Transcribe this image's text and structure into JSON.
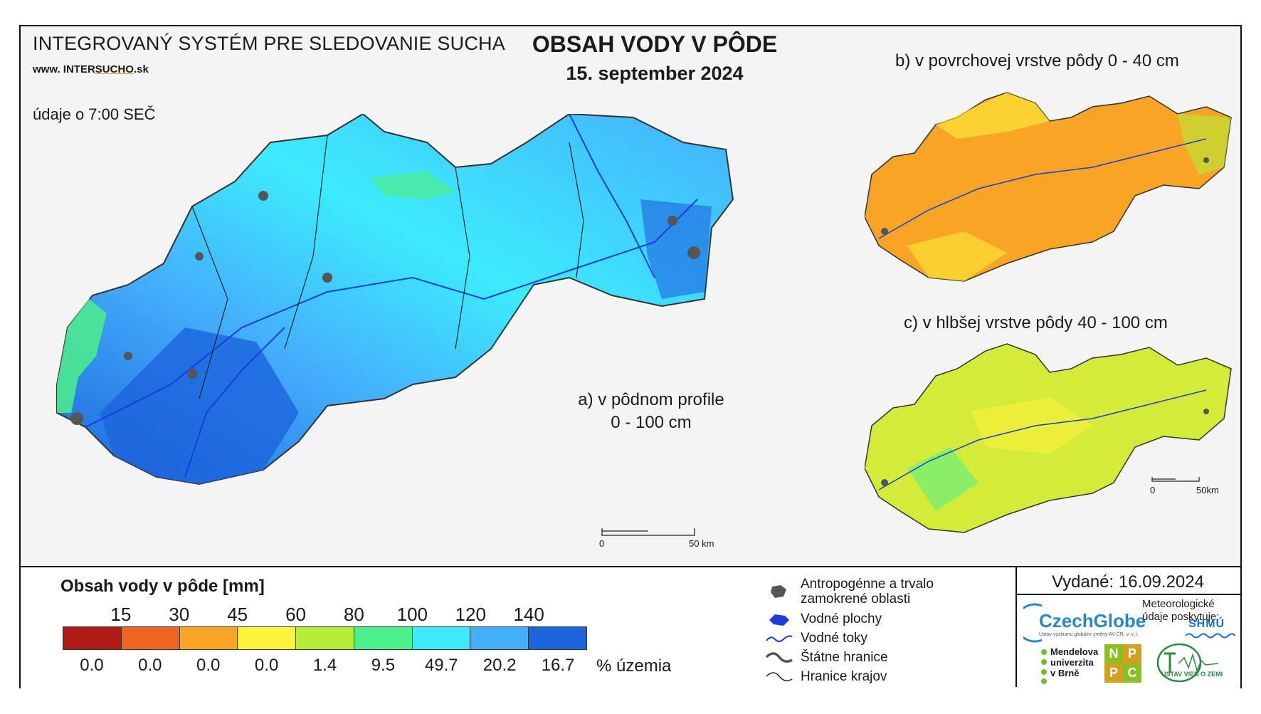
{
  "header": {
    "system_title": "INTEGROVANÝ SYSTÉM PRE SLEDOVANIE SUCHA",
    "url_prefix": "www.",
    "url_brand_a": "INTER",
    "url_brand_b": "SUCHO",
    "url_suffix": ".sk",
    "observation_time": "údaje o 7:00 SEČ",
    "title": "OBSAH VODY V PÔDE",
    "date": "15. september 2024"
  },
  "maps": {
    "a_line1": "a) v pôdnom profile",
    "a_line2": "0 - 100 cm",
    "b_caption": "b) v povrchovej vrstve pôdy 0 - 40 cm",
    "c_caption": "c) v hlbšej vrstve pôdy 40 - 100 cm",
    "scale_main": {
      "zero": "0",
      "end": "50 km"
    },
    "scale_small": {
      "zero": "0",
      "end": "50km"
    }
  },
  "legend": {
    "title": "Obsah vody v pôde  [mm]",
    "thresholds": [
      "15",
      "30",
      "45",
      "60",
      "80",
      "100",
      "120",
      "140"
    ],
    "colors": [
      "#b01a14",
      "#ec6420",
      "#f8a424",
      "#fcf43c",
      "#b4ec38",
      "#4cf08c",
      "#3cecfc",
      "#44b0fc",
      "#1c64dc"
    ],
    "percent_values": [
      "0.0",
      "0.0",
      "0.0",
      "0.0",
      "1.4",
      "9.5",
      "49.7",
      "20.2",
      "16.7"
    ],
    "percent_unit": "% územia"
  },
  "symbols": {
    "anthropogenic": "Antropogénne a trvalo zamokrené oblasti",
    "water_bodies": "Vodné plochy",
    "streams": "Vodné toky",
    "state_border": "Štátne hranice",
    "region_border": "Hranice krajov"
  },
  "footer": {
    "issued": "Vydané: 16.09.2024",
    "czechglobe": "CzechGlobe",
    "czechglobe_sub": "Ústav výzkumu globální změny AV ČR, v. v. i.",
    "meteo_credit": "Meteorologické údaje poskytuje:",
    "shmu": "SHMÚ",
    "mendel_1": "Mendelova",
    "mendel_2": "univerzita",
    "mendel_3": "v Brně",
    "nppc": [
      "N",
      "P",
      "P",
      "C"
    ],
    "uvz": "ÚSTAV VIED O ZEMI"
  }
}
